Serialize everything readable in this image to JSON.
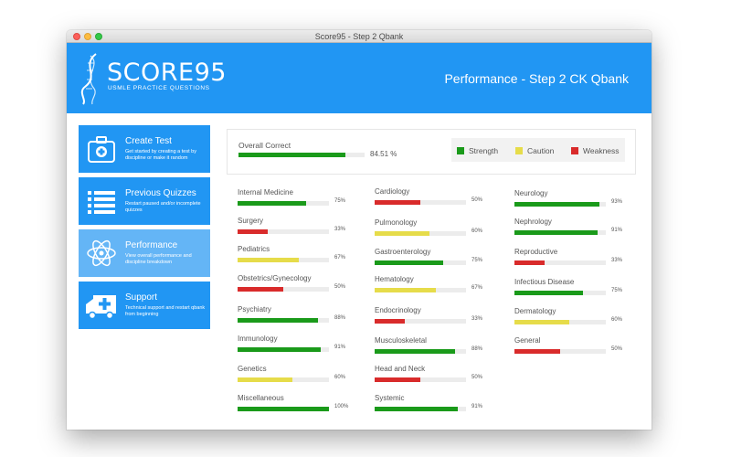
{
  "window": {
    "title": "Score95 - Step 2 Qbank"
  },
  "header": {
    "logo_title": "SCORE95",
    "logo_subtitle": "USMLE PRACTICE QUESTIONS",
    "page_title": "Performance - Step 2 CK Qbank"
  },
  "colors": {
    "brand": "#2196f3",
    "sidebar_active": "#64b5f6",
    "strength": "#1a9a1a",
    "caution": "#e6dc4a",
    "weakness": "#d92b2b"
  },
  "sidebar": {
    "items": [
      {
        "label": "Create Test",
        "description": "Get started by creating a test by discipline or make it random",
        "icon": "medical-kit-icon",
        "active": false
      },
      {
        "label": "Previous Quizzes",
        "description": "Restart paused and/or incomplete quizzes",
        "icon": "list-icon",
        "active": false
      },
      {
        "label": "Performance",
        "description": "View overall performance and discipline breakdown",
        "icon": "atom-icon",
        "active": true
      },
      {
        "label": "Support",
        "description": "Technical support and restart qbank from beginning",
        "icon": "ambulance-icon",
        "active": false
      }
    ]
  },
  "overall": {
    "label": "Overall Correct",
    "value_text": "84.51 %",
    "value": 84.51,
    "status": "strength"
  },
  "legend": [
    {
      "label": "Strength",
      "status": "strength"
    },
    {
      "label": "Caution",
      "status": "caution"
    },
    {
      "label": "Weakness",
      "status": "weakness"
    }
  ],
  "disciplines": [
    [
      {
        "name": "Internal Medicine",
        "pct": "75%",
        "value": 75,
        "status": "strength"
      },
      {
        "name": "Surgery",
        "pct": "33%",
        "value": 33,
        "status": "weakness"
      },
      {
        "name": "Pediatrics",
        "pct": "67%",
        "value": 67,
        "status": "caution"
      },
      {
        "name": "Obstetrics/Gynecology",
        "pct": "50%",
        "value": 50,
        "status": "weakness"
      },
      {
        "name": "Psychiatry",
        "pct": "88%",
        "value": 88,
        "status": "strength"
      },
      {
        "name": "Immunology",
        "pct": "91%",
        "value": 91,
        "status": "strength"
      },
      {
        "name": "Genetics",
        "pct": "60%",
        "value": 60,
        "status": "caution"
      },
      {
        "name": "Miscellaneous",
        "pct": "100%",
        "value": 100,
        "status": "strength"
      }
    ],
    [
      {
        "name": "Cardiology",
        "pct": "50%",
        "value": 50,
        "status": "weakness"
      },
      {
        "name": "Pulmonology",
        "pct": "60%",
        "value": 60,
        "status": "caution"
      },
      {
        "name": "Gastroenterology",
        "pct": "75%",
        "value": 75,
        "status": "strength"
      },
      {
        "name": "Hematology",
        "pct": "67%",
        "value": 67,
        "status": "caution"
      },
      {
        "name": "Endocrinology",
        "pct": "33%",
        "value": 33,
        "status": "weakness"
      },
      {
        "name": "Musculoskeletal",
        "pct": "88%",
        "value": 88,
        "status": "strength"
      },
      {
        "name": "Head and Neck",
        "pct": "50%",
        "value": 50,
        "status": "weakness"
      },
      {
        "name": "Systemic",
        "pct": "91%",
        "value": 91,
        "status": "strength"
      }
    ],
    [
      {
        "name": "Neurology",
        "pct": "93%",
        "value": 93,
        "status": "strength"
      },
      {
        "name": "Nephrology",
        "pct": "91%",
        "value": 91,
        "status": "strength"
      },
      {
        "name": "Reproductive",
        "pct": "33%",
        "value": 33,
        "status": "weakness"
      },
      {
        "name": "Infectious Disease",
        "pct": "75%",
        "value": 75,
        "status": "strength"
      },
      {
        "name": "Dermatology",
        "pct": "60%",
        "value": 60,
        "status": "caution"
      },
      {
        "name": "General",
        "pct": "50%",
        "value": 50,
        "status": "weakness"
      }
    ]
  ]
}
